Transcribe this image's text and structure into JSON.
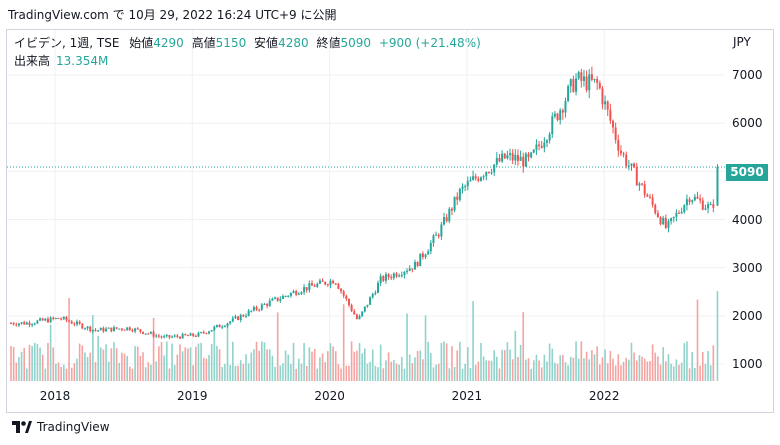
{
  "header": {
    "text": "TradingView.com で 10月 29, 2022 16:24 UTC+9 に公開"
  },
  "legend": {
    "symbol": "イビデン, 1週, TSE",
    "open_label": "始値",
    "open": "4290",
    "high_label": "高値",
    "high": "5150",
    "low_label": "安値",
    "low": "4280",
    "close_label": "終値",
    "close": "5090",
    "change": "+900 (+21.48%)",
    "volume_label": "出来高",
    "volume": "13.354M"
  },
  "footer": {
    "brand": "TradingView"
  },
  "colors": {
    "up": "#26a69a",
    "down": "#ef5350",
    "up_vol": "#8fd3cb",
    "down_vol": "#f5a3a1",
    "grid": "#eef0f3",
    "price_line": "#26a69a"
  },
  "chart_data": {
    "type": "candlestick",
    "currency": "JPY",
    "y_ticks": [
      "7000",
      "6000",
      "5000",
      "4000",
      "3000",
      "2000",
      "1000"
    ],
    "x_ticks": [
      "2018",
      "2019",
      "2020",
      "2021",
      "2022"
    ],
    "last_price": "5090",
    "ylim": [
      700,
      7700
    ],
    "approx_close_path": [
      {
        "date": "2017-10",
        "close": 1850
      },
      {
        "date": "2018-01",
        "close": 1950
      },
      {
        "date": "2018-04",
        "close": 1700
      },
      {
        "date": "2018-07",
        "close": 1750
      },
      {
        "date": "2018-10",
        "close": 1550
      },
      {
        "date": "2019-01",
        "close": 1600
      },
      {
        "date": "2019-04",
        "close": 1900
      },
      {
        "date": "2019-07",
        "close": 2250
      },
      {
        "date": "2019-10",
        "close": 2550
      },
      {
        "date": "2020-01",
        "close": 2750
      },
      {
        "date": "2020-03",
        "close": 1900
      },
      {
        "date": "2020-05",
        "close": 2750
      },
      {
        "date": "2020-08",
        "close": 3050
      },
      {
        "date": "2020-10",
        "close": 3700
      },
      {
        "date": "2020-12",
        "close": 4600
      },
      {
        "date": "2021-02",
        "close": 5000
      },
      {
        "date": "2021-04",
        "close": 5300
      },
      {
        "date": "2021-06",
        "close": 5200
      },
      {
        "date": "2021-08",
        "close": 6000
      },
      {
        "date": "2021-10",
        "close": 6900
      },
      {
        "date": "2021-12",
        "close": 6800
      },
      {
        "date": "2022-02",
        "close": 5400
      },
      {
        "date": "2022-04",
        "close": 4600
      },
      {
        "date": "2022-06",
        "close": 3800
      },
      {
        "date": "2022-08",
        "close": 4500
      },
      {
        "date": "2022-10",
        "close": 4200
      },
      {
        "date": "2022-10-28",
        "close": 5090
      }
    ]
  }
}
